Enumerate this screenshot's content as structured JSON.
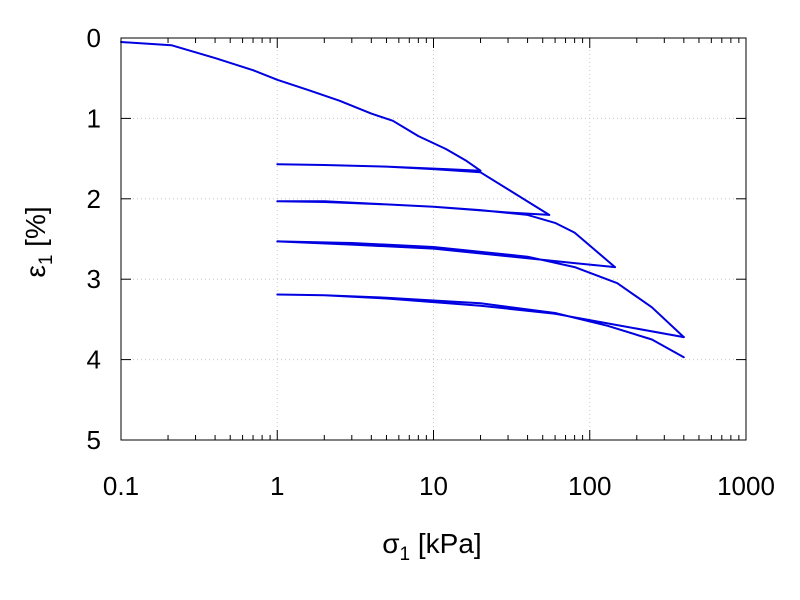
{
  "chart_data": {
    "type": "line",
    "xlabel": {
      "symbol": "σ",
      "subscript": "1",
      "unit": " [kPa]"
    },
    "ylabel": {
      "symbol": "ε",
      "subscript": "1",
      "unit": " [%]"
    },
    "xscale": "log",
    "xlim": [
      0.1,
      1000
    ],
    "ylim": [
      0,
      5
    ],
    "y_inverted": true,
    "grid": true,
    "legend": "none",
    "x_ticks": [
      {
        "value": 0.1,
        "label": "0.1"
      },
      {
        "value": 1,
        "label": "1"
      },
      {
        "value": 10,
        "label": "10"
      },
      {
        "value": 100,
        "label": "100"
      },
      {
        "value": 1000,
        "label": "1000"
      }
    ],
    "y_ticks": [
      {
        "value": 0,
        "label": "0"
      },
      {
        "value": 1,
        "label": "1"
      },
      {
        "value": 2,
        "label": "2"
      },
      {
        "value": 3,
        "label": "3"
      },
      {
        "value": 4,
        "label": "4"
      },
      {
        "value": 5,
        "label": "5"
      }
    ],
    "line_color": "#0000e0",
    "series": [
      {
        "x": [
          0.1,
          0.21,
          0.4,
          0.7,
          1.0,
          1.6,
          2.5,
          4.0,
          5.5,
          8.0,
          12.0,
          16.0,
          20.0
        ],
        "y": [
          0.05,
          0.09,
          0.25,
          0.4,
          0.52,
          0.65,
          0.78,
          0.94,
          1.03,
          1.22,
          1.38,
          1.52,
          1.65
        ]
      },
      {
        "x": [
          20.0,
          12.0,
          5.0,
          2.0,
          1.0,
          2.0,
          5.0,
          10.0,
          20.0,
          55.0
        ],
        "y": [
          1.65,
          1.63,
          1.6,
          1.58,
          1.57,
          1.58,
          1.6,
          1.63,
          1.67,
          2.2
        ]
      },
      {
        "x": [
          55.0,
          30.0,
          10.0,
          4.0,
          2.0,
          1.0,
          2.0,
          5.0,
          10.0,
          20.0,
          40.0,
          60.0,
          80.0,
          145.0
        ],
        "y": [
          2.2,
          2.17,
          2.1,
          2.06,
          2.03,
          2.03,
          2.04,
          2.07,
          2.1,
          2.14,
          2.2,
          2.3,
          2.42,
          2.85
        ]
      },
      {
        "x": [
          145.0,
          80.0,
          40.0,
          10.0,
          3.0,
          1.0,
          3.0,
          10.0,
          40.0,
          80.0,
          150.0,
          250.0,
          400.0
        ],
        "y": [
          2.85,
          2.8,
          2.74,
          2.62,
          2.57,
          2.53,
          2.55,
          2.6,
          2.72,
          2.85,
          3.05,
          3.35,
          3.72
        ]
      },
      {
        "x": [
          400.0,
          130.0,
          60.0,
          20.0,
          5.0,
          2.0,
          1.0,
          2.0,
          5.0,
          20.0,
          60.0,
          130.0,
          250.0,
          400.0
        ],
        "y": [
          3.72,
          3.55,
          3.43,
          3.33,
          3.24,
          3.2,
          3.19,
          3.2,
          3.23,
          3.3,
          3.42,
          3.58,
          3.75,
          3.97
        ]
      }
    ]
  }
}
